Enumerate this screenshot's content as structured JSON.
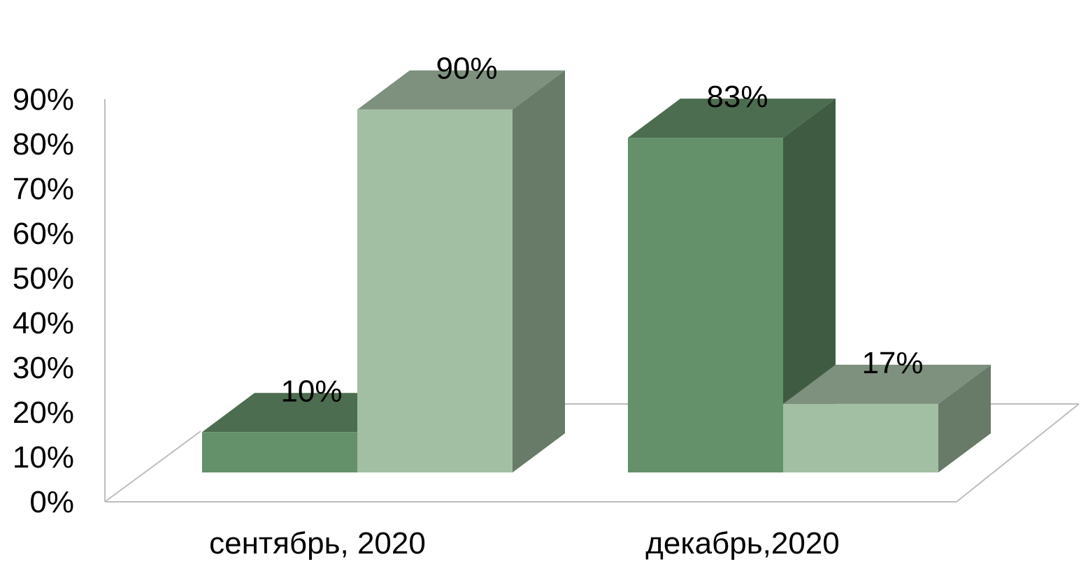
{
  "chart_data": {
    "type": "bar",
    "variant": "3d-clustered-column",
    "categories": [
      "сентябрь, 2020",
      "декабрь,2020"
    ],
    "series": [
      {
        "values": [
          10,
          83
        ],
        "color": "#64906a"
      },
      {
        "values": [
          90,
          17
        ],
        "color": "#a2bfa4"
      }
    ],
    "value_labels": [
      [
        "10%",
        "83%"
      ],
      [
        "90%",
        "17%"
      ]
    ],
    "y_ticks": [
      "0%",
      "10%",
      "20%",
      "30%",
      "40%",
      "50%",
      "60%",
      "70%",
      "80%",
      "90%"
    ],
    "ylim": [
      0,
      90
    ],
    "grid": false,
    "legend": "none",
    "title": "",
    "xlabel": "",
    "ylabel": "",
    "colors": {
      "dark_front": "#64906a",
      "dark_top": "#4c6d4f",
      "dark_side": "#3f5c42",
      "light_front": "#a2bfa4",
      "light_top": "#7e907e",
      "light_side": "#687a68",
      "floor_line": "#bdbdbd"
    }
  }
}
